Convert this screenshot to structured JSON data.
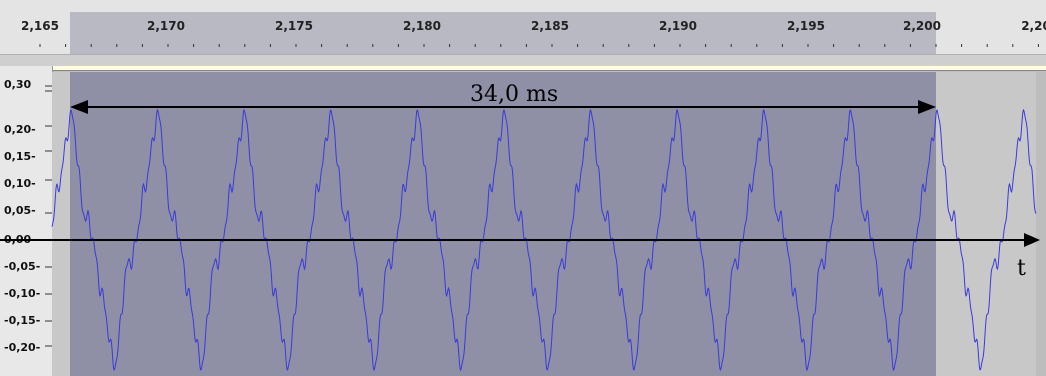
{
  "ruler": {
    "ticks": [
      "2,165",
      "2,170",
      "2,175",
      "2,180",
      "2,185",
      "2,190",
      "2,195",
      "2,200",
      "2,20"
    ]
  },
  "track": {
    "amplitude_labels": [
      "0,30",
      "0,20-",
      "0,15-",
      "0,10-",
      "0,05-",
      "0,00-",
      "-0,05-",
      "-0,10-",
      "-0,15-",
      "-0,20-"
    ]
  },
  "annotation": {
    "measure_label": "34,0 ms",
    "axis_label": "t"
  },
  "colors": {
    "waveform": "#3a3adc",
    "selection": "#8f8fa6",
    "arrow": "#000000"
  }
}
